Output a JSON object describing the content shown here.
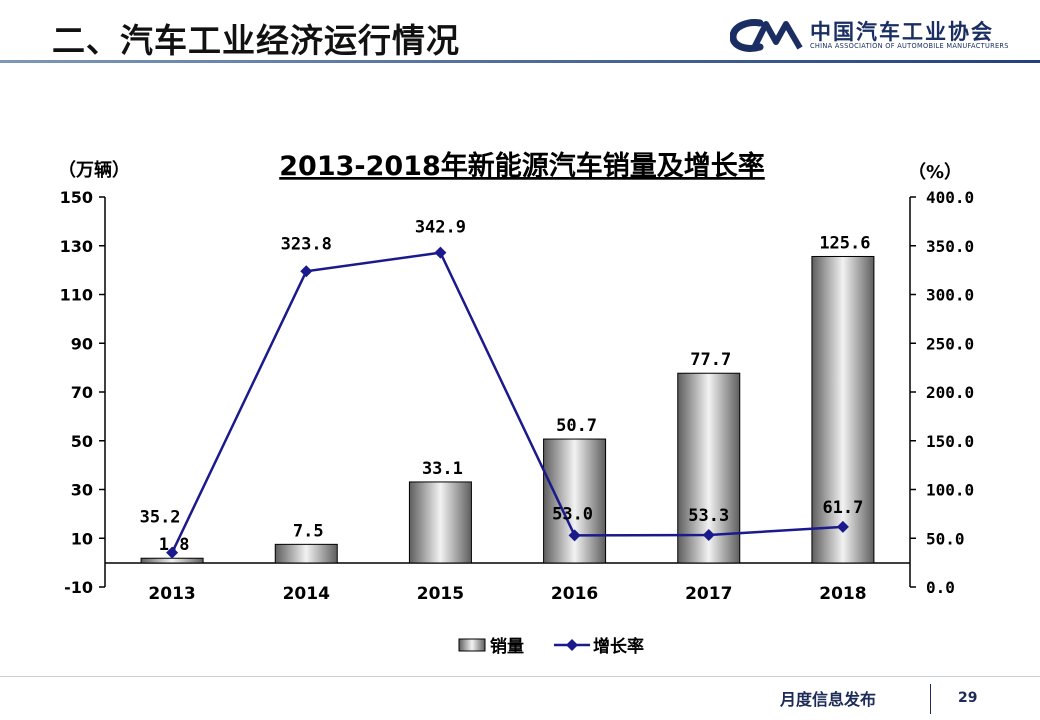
{
  "slide": {
    "title": "二、汽车工业经济运行情况",
    "logo_cn": "中国汽车工业协会",
    "logo_en": "CHINA ASSOCIATION OF AUTOMOBILE MANUFACTURERS",
    "footer_text": "月度信息发布",
    "page_number": "29"
  },
  "colors": {
    "line": "#1a1a8c",
    "axis": "#000000",
    "header_rule": "#23417a",
    "text_dark": "#1c2b57"
  },
  "chart_data": {
    "type": "bar",
    "title": "2013-2018年新能源汽车销量及增长率",
    "ylabel": "（万辆）",
    "y2label": "（%）",
    "categories": [
      "2013",
      "2014",
      "2015",
      "2016",
      "2017",
      "2018"
    ],
    "ylim": [
      -10,
      150
    ],
    "yticks": [
      "150",
      "130",
      "110",
      "90",
      "70",
      "50",
      "30",
      "10",
      "-10"
    ],
    "y2lim": [
      0,
      400
    ],
    "y2ticks": [
      "400.0",
      "350.0",
      "300.0",
      "250.0",
      "200.0",
      "150.0",
      "100.0",
      "50.0",
      "0.0"
    ],
    "series": [
      {
        "name": "销量",
        "type": "bar",
        "axis": "left",
        "values": [
          1.8,
          7.5,
          33.1,
          50.7,
          77.7,
          125.6
        ],
        "labels": [
          "1.8",
          "7.5",
          "33.1",
          "50.7",
          "77.7",
          "125.6"
        ]
      },
      {
        "name": "增长率",
        "type": "line",
        "axis": "right",
        "values": [
          35.2,
          323.8,
          342.9,
          53.0,
          53.3,
          61.7
        ],
        "labels": [
          "35.2",
          "323.8",
          "342.9",
          "53.0",
          "53.3",
          "61.7"
        ]
      }
    ],
    "legend": "bottom-center",
    "grid": false
  }
}
